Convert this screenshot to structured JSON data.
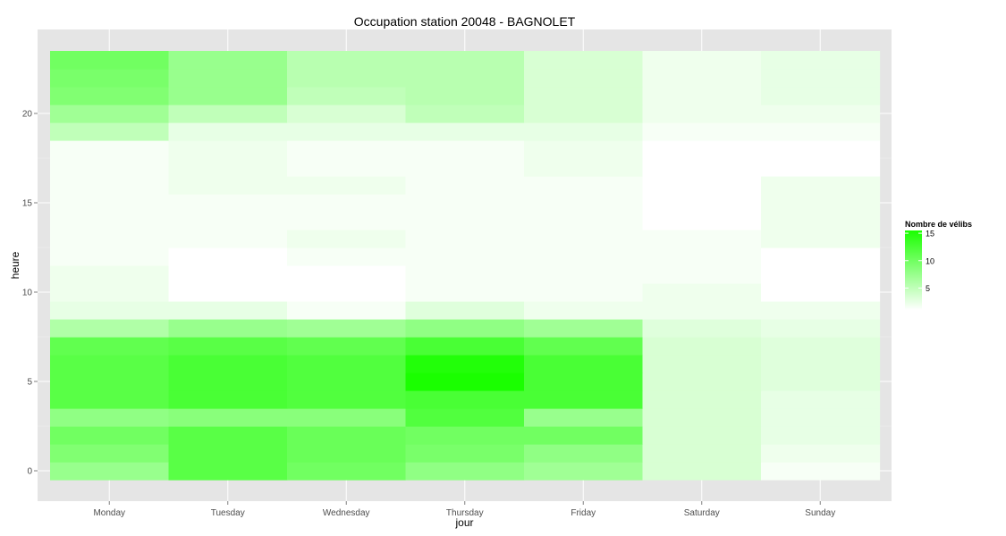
{
  "chart_data": {
    "type": "heatmap",
    "title": "Occupation station 20048 - BAGNOLET",
    "xlabel": "jour",
    "ylabel": "heure",
    "categories": [
      "Monday",
      "Tuesday",
      "Wednesday",
      "Thursday",
      "Friday",
      "Saturday",
      "Sunday"
    ],
    "y_values": [
      0,
      1,
      2,
      3,
      4,
      5,
      6,
      7,
      8,
      9,
      10,
      11,
      12,
      13,
      14,
      15,
      16,
      17,
      18,
      19,
      20,
      21,
      22,
      23
    ],
    "y_ticks": [
      0,
      5,
      10,
      15,
      20
    ],
    "ylim": [
      -0.5,
      23.5
    ],
    "grid": true,
    "legend": {
      "title": "Nombre de vélibs",
      "placement": "right",
      "min": 1,
      "max": 15.5,
      "ticks": [
        5,
        10,
        15
      ],
      "low_color": "#ffffff",
      "high_color": "#1aff00"
    },
    "colors": {
      "panel": "#e5e5e5",
      "grid": "#ffffff"
    },
    "values": [
      [
        7.5,
        11.5,
        10.0,
        8.0,
        7.0,
        3.5,
        1.5
      ],
      [
        9.0,
        11.5,
        10.5,
        9.5,
        8.0,
        3.5,
        2.0
      ],
      [
        10.0,
        11.5,
        10.5,
        10.0,
        10.0,
        3.5,
        2.5
      ],
      [
        8.0,
        8.5,
        8.5,
        12.0,
        7.5,
        3.5,
        2.5
      ],
      [
        11.5,
        12.5,
        12.0,
        12.5,
        12.5,
        3.5,
        2.5
      ],
      [
        11.5,
        12.5,
        12.0,
        15.5,
        12.5,
        3.5,
        3.0
      ],
      [
        11.5,
        12.5,
        12.0,
        15.0,
        12.5,
        3.5,
        3.0
      ],
      [
        11.0,
        11.5,
        11.0,
        12.5,
        11.0,
        3.5,
        3.0
      ],
      [
        6.0,
        7.5,
        7.0,
        8.0,
        7.0,
        3.0,
        2.5
      ],
      [
        2.5,
        2.5,
        1.5,
        3.0,
        2.0,
        2.0,
        2.0
      ],
      [
        2.0,
        1.0,
        1.0,
        1.5,
        1.5,
        2.0,
        1.0
      ],
      [
        2.0,
        1.0,
        1.0,
        1.5,
        1.5,
        1.5,
        1.0
      ],
      [
        1.5,
        1.0,
        1.5,
        1.5,
        1.5,
        1.5,
        1.0
      ],
      [
        1.5,
        1.5,
        2.0,
        1.5,
        1.5,
        1.5,
        2.0
      ],
      [
        1.5,
        1.5,
        1.5,
        1.5,
        1.5,
        1.0,
        2.0
      ],
      [
        1.5,
        1.5,
        1.5,
        1.5,
        1.5,
        1.0,
        2.0
      ],
      [
        1.5,
        2.0,
        2.0,
        1.5,
        1.5,
        1.0,
        2.0
      ],
      [
        1.5,
        2.0,
        1.5,
        1.5,
        2.0,
        1.0,
        1.0
      ],
      [
        1.5,
        2.0,
        1.5,
        1.5,
        2.0,
        1.0,
        1.0
      ],
      [
        5.0,
        2.5,
        2.5,
        2.5,
        2.5,
        1.5,
        1.5
      ],
      [
        7.0,
        5.0,
        3.5,
        5.0,
        3.5,
        2.0,
        2.0
      ],
      [
        9.0,
        7.5,
        5.0,
        5.5,
        3.5,
        2.0,
        2.5
      ],
      [
        9.5,
        7.5,
        5.5,
        5.5,
        3.5,
        2.0,
        2.5
      ],
      [
        10.0,
        7.5,
        5.5,
        5.5,
        3.5,
        2.0,
        2.5
      ]
    ]
  }
}
